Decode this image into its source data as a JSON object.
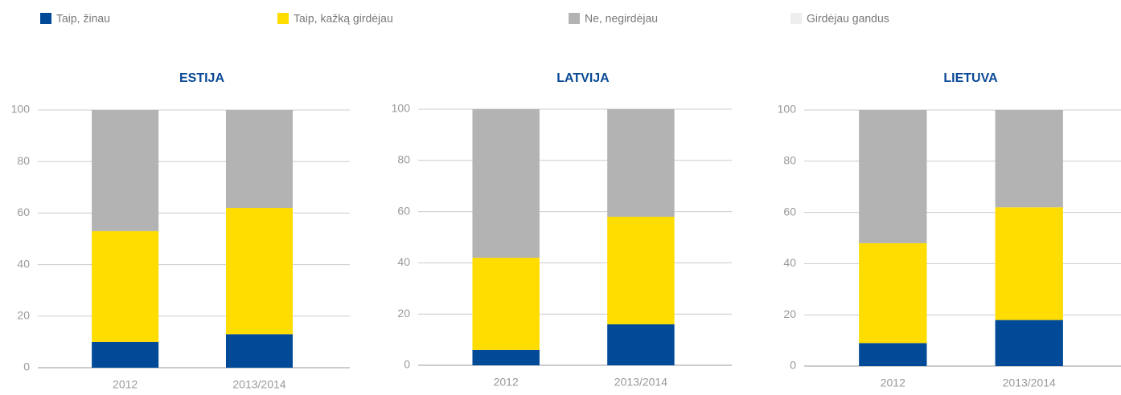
{
  "chart_data": [
    {
      "type": "bar",
      "stacked": true,
      "title": "ESTIJA",
      "categories": [
        "2012",
        "2013/2014"
      ],
      "series": [
        {
          "name": "Taip, žinau",
          "color": "#004a98",
          "values": [
            10,
            13
          ]
        },
        {
          "name": "Taip, kažką girdėjau",
          "color": "#ffdd00",
          "values": [
            43,
            49
          ]
        },
        {
          "name": "Ne, negirdėjau",
          "color": "#b3b3b3",
          "values": [
            47,
            38
          ]
        },
        {
          "name": "Girdėjau gandus",
          "color": "#eeeeee",
          "values": [
            0,
            0
          ]
        }
      ],
      "ylim": [
        0,
        100
      ],
      "yticks": [
        0,
        20,
        40,
        60,
        80,
        100
      ],
      "grid": true
    },
    {
      "type": "bar",
      "stacked": true,
      "title": "LATVIJA",
      "categories": [
        "2012",
        "2013/2014"
      ],
      "series": [
        {
          "name": "Taip, žinau",
          "color": "#004a98",
          "values": [
            6,
            16
          ]
        },
        {
          "name": "Taip, kažką girdėjau",
          "color": "#ffdd00",
          "values": [
            36,
            42
          ]
        },
        {
          "name": "Ne, negirdėjau",
          "color": "#b3b3b3",
          "values": [
            58,
            42
          ]
        },
        {
          "name": "Girdėjau gandus",
          "color": "#eeeeee",
          "values": [
            0,
            0
          ]
        }
      ],
      "ylim": [
        0,
        100
      ],
      "yticks": [
        0,
        20,
        40,
        60,
        80,
        100
      ],
      "grid": true
    },
    {
      "type": "bar",
      "stacked": true,
      "title": "LIETUVA",
      "categories": [
        "2012",
        "2013/2014"
      ],
      "series": [
        {
          "name": "Taip, žinau",
          "color": "#004a98",
          "values": [
            9,
            18
          ]
        },
        {
          "name": "Taip, kažką girdėjau",
          "color": "#ffdd00",
          "values": [
            39,
            44
          ]
        },
        {
          "name": "Ne, negirdėjau",
          "color": "#b3b3b3",
          "values": [
            52,
            38
          ]
        },
        {
          "name": "Girdėjau gandus",
          "color": "#eeeeee",
          "values": [
            0,
            0
          ]
        }
      ],
      "ylim": [
        0,
        100
      ],
      "yticks": [
        0,
        20,
        40,
        60,
        80,
        100
      ],
      "grid": true
    }
  ]
}
